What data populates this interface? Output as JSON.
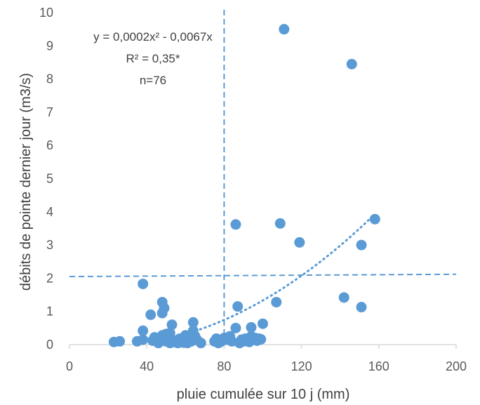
{
  "chart_data": {
    "type": "scatter",
    "xlabel": "pluie cumulée sur 10 j (mm)",
    "ylabel": "débits  de pointe dernier jour  (m3/s)",
    "xlim": [
      0,
      200
    ],
    "ylim": [
      0,
      10
    ],
    "xticks": [
      "0",
      "40",
      "80",
      "120",
      "160",
      "200"
    ],
    "yticks": [
      "0",
      "1",
      "2",
      "3",
      "4",
      "5",
      "6",
      "7",
      "8",
      "9",
      "10"
    ],
    "grid": false,
    "legend": "none",
    "marker_color": "#5B9BD5",
    "line_color": "#5B9BD5",
    "annotations": {
      "equation": "y = 0,0002x² - 0,0067x",
      "r2": "R² = 0,35*",
      "n": "n=76"
    },
    "trendline": {
      "style": "dotted",
      "a": 0.0002,
      "b": -0.0067,
      "x_range": [
        43,
        158
      ]
    },
    "reference_lines": [
      {
        "orientation": "vertical",
        "x": 80,
        "style": "dashed"
      },
      {
        "orientation": "horizontal",
        "x1": 0,
        "y1": 2.05,
        "x2": 200,
        "y2": 2.12,
        "style": "dashed"
      }
    ],
    "points": [
      {
        "x": 111,
        "y": 9.5
      },
      {
        "x": 146,
        "y": 8.45
      },
      {
        "x": 158,
        "y": 3.78
      },
      {
        "x": 86,
        "y": 3.62
      },
      {
        "x": 109,
        "y": 3.65
      },
      {
        "x": 119,
        "y": 3.08
      },
      {
        "x": 151,
        "y": 3.0
      },
      {
        "x": 38,
        "y": 1.83
      },
      {
        "x": 48,
        "y": 1.28
      },
      {
        "x": 49,
        "y": 1.1
      },
      {
        "x": 48,
        "y": 0.95
      },
      {
        "x": 42,
        "y": 0.9
      },
      {
        "x": 87,
        "y": 1.15
      },
      {
        "x": 107,
        "y": 1.28
      },
      {
        "x": 142,
        "y": 1.42
      },
      {
        "x": 151,
        "y": 1.13
      },
      {
        "x": 53,
        "y": 0.6
      },
      {
        "x": 64,
        "y": 0.67
      },
      {
        "x": 64,
        "y": 0.42
      },
      {
        "x": 38,
        "y": 0.42
      },
      {
        "x": 100,
        "y": 0.63
      },
      {
        "x": 86,
        "y": 0.5
      },
      {
        "x": 94,
        "y": 0.52
      },
      {
        "x": 23,
        "y": 0.08
      },
      {
        "x": 26,
        "y": 0.1
      },
      {
        "x": 35,
        "y": 0.1
      },
      {
        "x": 38,
        "y": 0.15
      },
      {
        "x": 43,
        "y": 0.12
      },
      {
        "x": 45,
        "y": 0.15
      },
      {
        "x": 47,
        "y": 0.2
      },
      {
        "x": 48,
        "y": 0.28
      },
      {
        "x": 49,
        "y": 0.18
      },
      {
        "x": 50,
        "y": 0.32
      },
      {
        "x": 50,
        "y": 0.1
      },
      {
        "x": 51,
        "y": 0.22
      },
      {
        "x": 52,
        "y": 0.05
      },
      {
        "x": 53,
        "y": 0.15
      },
      {
        "x": 54,
        "y": 0.08
      },
      {
        "x": 55,
        "y": 0.12
      },
      {
        "x": 56,
        "y": 0.05
      },
      {
        "x": 58,
        "y": 0.1
      },
      {
        "x": 60,
        "y": 0.28
      },
      {
        "x": 61,
        "y": 0.15
      },
      {
        "x": 62,
        "y": 0.2
      },
      {
        "x": 63,
        "y": 0.1
      },
      {
        "x": 65,
        "y": 0.25
      },
      {
        "x": 68,
        "y": 0.05
      },
      {
        "x": 75,
        "y": 0.1
      },
      {
        "x": 76,
        "y": 0.18
      },
      {
        "x": 77,
        "y": 0.05
      },
      {
        "x": 78,
        "y": 0.08
      },
      {
        "x": 79,
        "y": 0.12
      },
      {
        "x": 80,
        "y": 0.2
      },
      {
        "x": 81,
        "y": 0.15
      },
      {
        "x": 82,
        "y": 0.22
      },
      {
        "x": 83,
        "y": 0.25
      },
      {
        "x": 88,
        "y": 0.05
      },
      {
        "x": 89,
        "y": 0.15
      },
      {
        "x": 90,
        "y": 0.1
      },
      {
        "x": 91,
        "y": 0.18
      },
      {
        "x": 92,
        "y": 0.12
      },
      {
        "x": 93,
        "y": 0.08
      },
      {
        "x": 95,
        "y": 0.15
      },
      {
        "x": 96,
        "y": 0.2
      },
      {
        "x": 97,
        "y": 0.12
      },
      {
        "x": 98,
        "y": 0.18
      },
      {
        "x": 46,
        "y": 0.05
      },
      {
        "x": 52,
        "y": 0.35
      },
      {
        "x": 57,
        "y": 0.18
      },
      {
        "x": 59,
        "y": 0.06
      },
      {
        "x": 66,
        "y": 0.14
      },
      {
        "x": 84,
        "y": 0.1
      },
      {
        "x": 99,
        "y": 0.16
      },
      {
        "x": 44,
        "y": 0.22
      },
      {
        "x": 61,
        "y": 0.05
      },
      {
        "x": 94,
        "y": 0.25
      }
    ]
  }
}
